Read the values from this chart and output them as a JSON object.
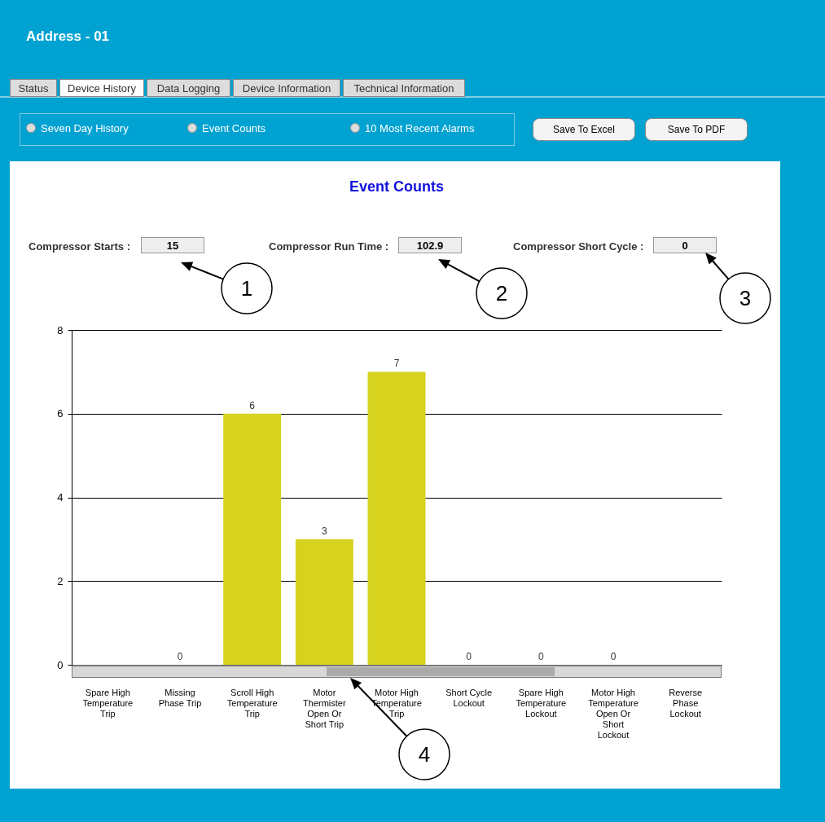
{
  "chart_data": {
    "type": "bar",
    "title": "Event Counts",
    "categories": [
      "Spare High Temperature Trip",
      "Missing Phase Trip",
      "Scroll High Temperature Trip",
      "Motor Thermister Open Or Short Trip",
      "Motor High Temperature Trip",
      "Short Cycle Lockout",
      "Spare High Temperature Lockout",
      "Motor High Temperature Open Or Short Lockout",
      "Reverse Phase Lockout"
    ],
    "values": [
      0,
      0,
      6,
      3,
      7,
      0,
      0,
      0,
      0
    ],
    "value_labels": [
      null,
      "0",
      "6",
      "3",
      "7",
      "0",
      "0",
      "0",
      null
    ],
    "color": "#d6d21e",
    "ylim": [
      0,
      8
    ],
    "yticks": [
      0,
      2,
      4,
      6,
      8
    ],
    "grid": "y",
    "annotations": [
      "Address - 01",
      "Status",
      "Device History",
      "Data Logging",
      "Device Information",
      "Technical Information",
      "Seven Day History",
      "Event Counts",
      "10 Most Recent Alarms",
      "Save To Excel",
      "Save To PDF",
      "Compressor Starts :",
      "15",
      "Compressor Run Time :",
      "102.9",
      "Compressor Short Cycle :",
      "0",
      "1",
      "2",
      "3",
      "4"
    ]
  }
}
